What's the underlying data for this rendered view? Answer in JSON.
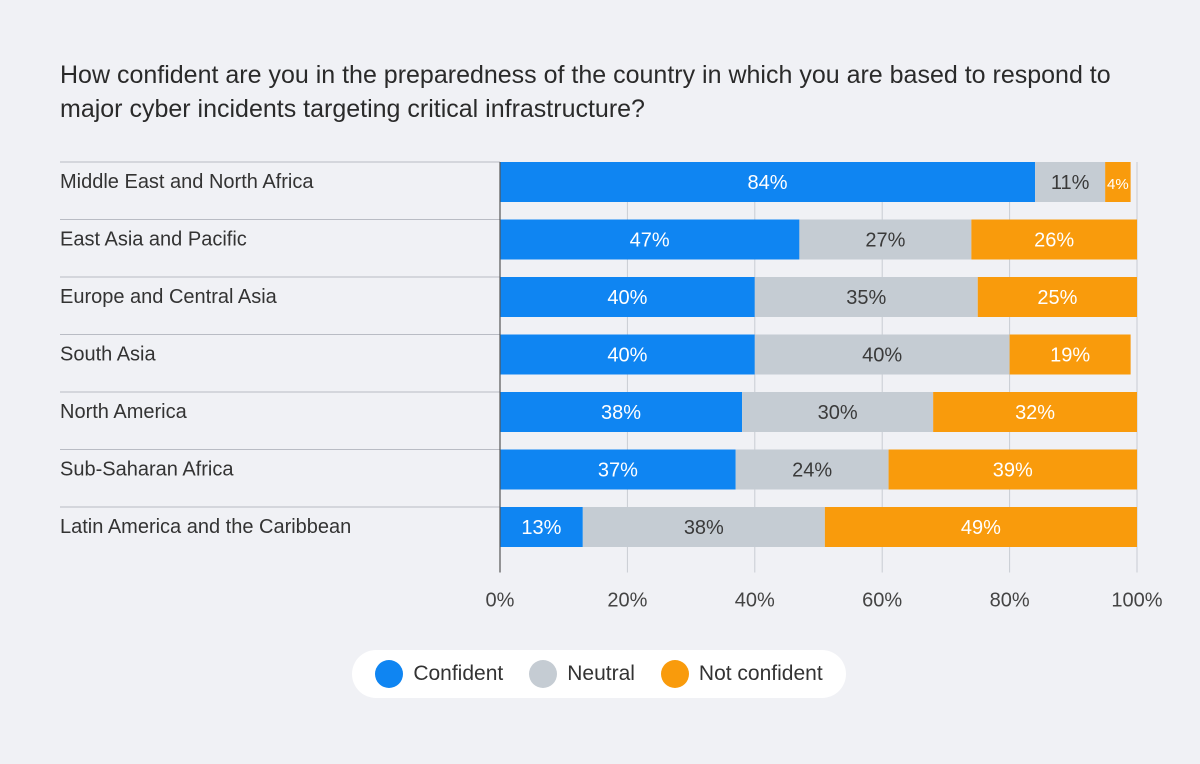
{
  "chart_data": {
    "type": "bar",
    "orientation": "horizontal",
    "stacked": true,
    "title": "How confident are you in the preparedness of the country in which you are based to respond to major cyber incidents targeting critical infrastructure?",
    "categories": [
      "Middle East and North Africa",
      "East Asia and Pacific",
      "Europe and Central Asia",
      "South Asia",
      "North America",
      "Sub-Saharan Africa",
      "Latin America and the Caribbean"
    ],
    "series": [
      {
        "name": "Confident",
        "color": "#0f85f2",
        "values": [
          84,
          47,
          40,
          40,
          38,
          37,
          13
        ]
      },
      {
        "name": "Neutral",
        "color": "#c5ccd3",
        "values": [
          11,
          27,
          35,
          40,
          30,
          24,
          38
        ]
      },
      {
        "name": "Not confident",
        "color": "#f99b0c",
        "values": [
          4,
          26,
          25,
          19,
          32,
          39,
          49
        ]
      }
    ],
    "xlim": [
      0,
      100
    ],
    "xticks": [
      "0%",
      "20%",
      "40%",
      "60%",
      "80%",
      "100%"
    ],
    "grid": true,
    "legend": "bottom-center"
  }
}
